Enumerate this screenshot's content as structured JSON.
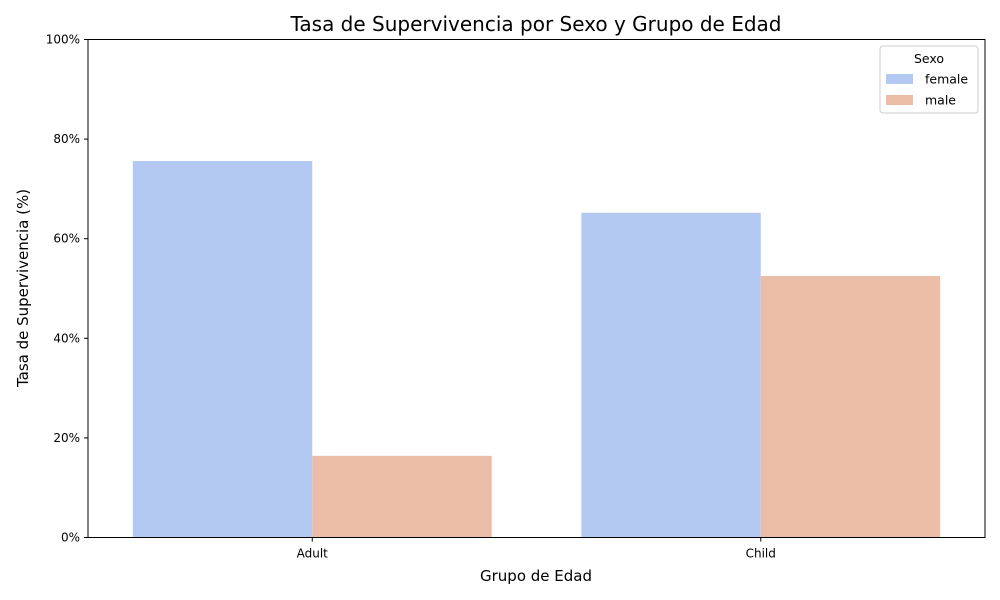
{
  "chart_data": {
    "type": "bar",
    "title": "Tasa de Supervivencia por Sexo y Grupo de Edad",
    "xlabel": "Grupo de Edad",
    "ylabel": "Tasa de Supervivencia (%)",
    "categories": [
      "Adult",
      "Child"
    ],
    "series": [
      {
        "name": "female",
        "values": [
          75.6,
          65.2
        ],
        "color": "#b3c9f2"
      },
      {
        "name": "male",
        "values": [
          16.4,
          52.5
        ],
        "color": "#ebbca6"
      }
    ],
    "ylim": [
      0,
      100
    ],
    "yticks": [
      0,
      20,
      40,
      60,
      80,
      100
    ],
    "ytick_labels": [
      "0%",
      "20%",
      "40%",
      "60%",
      "80%",
      "100%"
    ],
    "grid": false,
    "legend": {
      "title": "Sexo",
      "placement": "top-right"
    }
  }
}
